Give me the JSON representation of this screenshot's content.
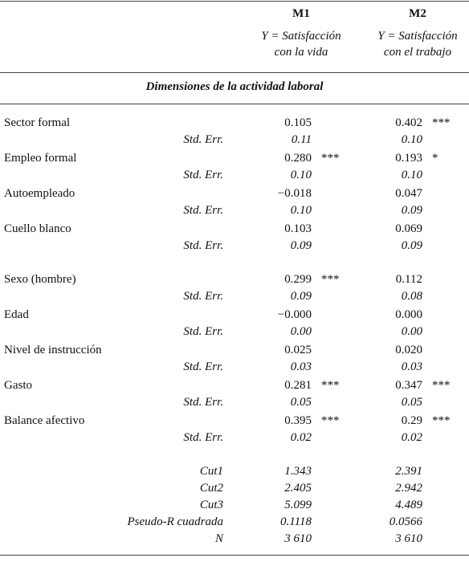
{
  "header": {
    "columns": [
      {
        "title": "M1",
        "line1": "Y = Satisfacción",
        "line2": "con la vida"
      },
      {
        "title": "M2",
        "line1": "Y = Satisfacción",
        "line2": "con el trabajo"
      }
    ]
  },
  "section_title": "Dimensiones de la actividad laboral",
  "groups": [
    {
      "rows": [
        {
          "label": "Sector formal",
          "m1": "0.105",
          "m2": "0.402",
          "m2_stars": "***",
          "se_label": "Std. Err.",
          "m1_se": "0.11",
          "m2_se": "0.10"
        },
        {
          "label": "Empleo formal",
          "m1": "0.280",
          "m1_stars": "***",
          "m2": "0.193",
          "m2_stars": "*",
          "se_label": "Std. Err.",
          "m1_se": "0.10",
          "m2_se": "0.10"
        },
        {
          "label": "Autoempleado",
          "m1": "−0.018",
          "m2": "0.047",
          "se_label": "Std. Err.",
          "m1_se": "0.10",
          "m2_se": "0.09"
        },
        {
          "label": "Cuello blanco",
          "m1": "0.103",
          "m2": "0.069",
          "se_label": "Std. Err.",
          "m1_se": "0.09",
          "m2_se": "0.09"
        }
      ]
    },
    {
      "rows": [
        {
          "label": "Sexo (hombre)",
          "m1": "0.299",
          "m1_stars": "***",
          "m2": "0.112",
          "se_label": "Std. Err.",
          "m1_se": "0.09",
          "m2_se": "0.08"
        },
        {
          "label": "Edad",
          "m1": "−0.000",
          "m2": "0.000",
          "se_label": "Std. Err.",
          "m1_se": "0.00",
          "m2_se": "0.00"
        },
        {
          "label": "Nivel de instrucción",
          "m1": "0.025",
          "m2": "0.020",
          "se_label": "Std. Err.",
          "m1_se": "0.03",
          "m2_se": "0.03"
        },
        {
          "label": "Gasto",
          "m1": "0.281",
          "m1_stars": "***",
          "m2": "0.347",
          "m2_stars": "***",
          "se_label": "Std. Err.",
          "m1_se": "0.05",
          "m2_se": "0.05"
        },
        {
          "label": "Balance afectivo",
          "m1": "0.395",
          "m1_stars": "***",
          "m2": "0.29",
          "m2_stars": "***",
          "se_label": "Std. Err.",
          "m1_se": "0.02",
          "m2_se": "0.02"
        }
      ]
    }
  ],
  "stats": [
    {
      "label": "Cut1",
      "m1": "1.343",
      "m2": "2.391"
    },
    {
      "label": "Cut2",
      "m1": "2.405",
      "m2": "2.942"
    },
    {
      "label": "Cut3",
      "m1": "5.099",
      "m2": "4.489"
    },
    {
      "label": "Pseudo-R cuadrada",
      "m1": "0.1118",
      "m2": "0.0566"
    },
    {
      "label": "N",
      "m1": "3 610",
      "m2": "3 610"
    }
  ]
}
